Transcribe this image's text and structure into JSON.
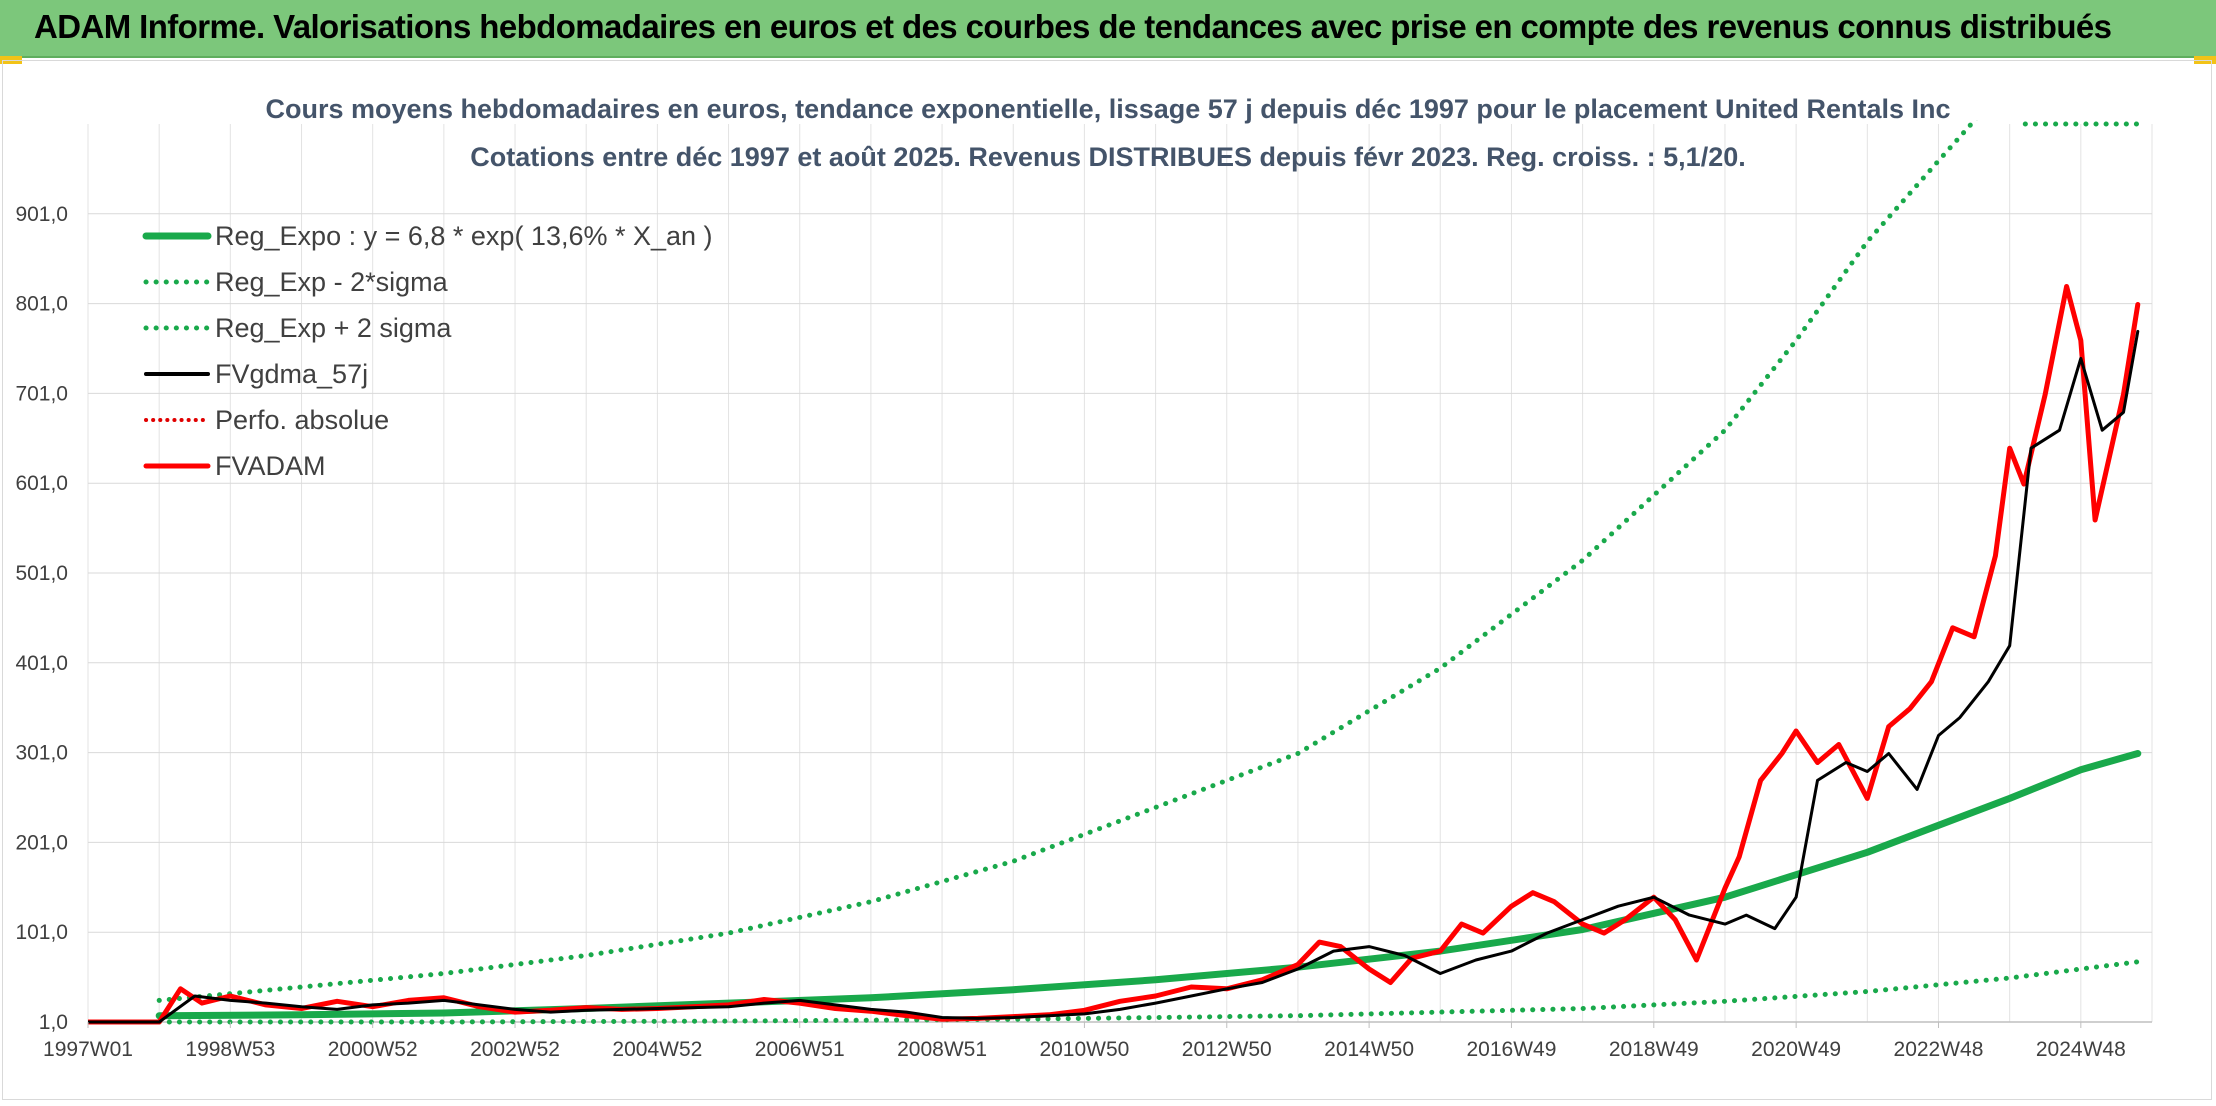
{
  "header": {
    "title": "ADAM Informe. Valorisations hebdomadaires en euros et des courbes de tendances avec prise en compte des revenus connus distribués"
  },
  "colors": {
    "header_bg": "#7cc77b",
    "trend_green": "#19a94b",
    "fv_black": "#000000",
    "fvadam_red": "#ff0000",
    "perfo_red": "#e00000",
    "title_text": "#44546a"
  },
  "chart_data": {
    "type": "line",
    "title": "Cours moyens hebdomadaires en euros, tendance exponentielle, lissage 57 j depuis déc 1997 pour le placement United Rentals Inc",
    "subtitle": "Cotations entre déc 1997 et août 2025. Revenus DISTRIBUES depuis févr 2023. Reg. croiss. : 5,1/20.",
    "xlabel": "",
    "ylabel": "",
    "x_tick_labels": [
      "1997W01",
      "1998W53",
      "2000W52",
      "2002W52",
      "2004W52",
      "2006W51",
      "2008W51",
      "2010W50",
      "2012W50",
      "2014W50",
      "2016W49",
      "2018W49",
      "2020W49",
      "2022W48",
      "2024W48"
    ],
    "x_tick_years": [
      1997.0,
      1999.0,
      2001.0,
      2003.0,
      2005.0,
      2007.0,
      2009.0,
      2011.0,
      2013.0,
      2015.0,
      2017.0,
      2019.0,
      2021.0,
      2023.0,
      2025.0
    ],
    "xlim": [
      1997.0,
      2026.0
    ],
    "y_tick_labels": [
      "1,0",
      "101,0",
      "201,0",
      "301,0",
      "401,0",
      "501,0",
      "601,0",
      "701,0",
      "801,0",
      "901,0"
    ],
    "y_ticks": [
      1,
      101,
      201,
      301,
      401,
      501,
      601,
      701,
      801,
      901
    ],
    "ylim": [
      1,
      1001
    ],
    "grid": true,
    "legend_position": "top-left",
    "legend": [
      {
        "label": "Reg_Expo : y = 6,8 * exp( 13,6% *  X_an )",
        "style": "solid-thick",
        "color": "#19a94b"
      },
      {
        "label": "Reg_Exp - 2*sigma",
        "style": "dotted",
        "color": "#19a94b"
      },
      {
        "label": "Reg_Exp + 2 sigma",
        "style": "dotted",
        "color": "#19a94b"
      },
      {
        "label": "FVgdma_57j",
        "style": "solid",
        "color": "#000000"
      },
      {
        "label": "Perfo. absolue",
        "style": "dotted",
        "color": "#e00000"
      },
      {
        "label": "FVADAM",
        "style": "solid-thick",
        "color": "#ff0000"
      }
    ],
    "series": [
      {
        "name": "Reg_Expo : y = 6,8 * exp( 13,6% *  X_an )",
        "x": [
          1998.0,
          2000.0,
          2002.0,
          2004.0,
          2006.0,
          2008.0,
          2010.0,
          2012.0,
          2014.0,
          2016.0,
          2018.0,
          2020.0,
          2021.0,
          2022.0,
          2023.0,
          2024.0,
          2025.0,
          2025.8
        ],
        "y": [
          8,
          9,
          11,
          16,
          22,
          28,
          37,
          48,
          62,
          80,
          104,
          140,
          165,
          190,
          220,
          250,
          282,
          300
        ]
      },
      {
        "name": "Reg_Exp - 2*sigma",
        "x": [
          1998.0,
          2002.0,
          2006.0,
          2010.0,
          2014.0,
          2018.0,
          2020.0,
          2022.0,
          2024.0,
          2025.8
        ],
        "y": [
          1,
          1,
          2,
          4,
          8,
          16,
          24,
          35,
          50,
          68
        ]
      },
      {
        "name": "Reg_Exp + 2 sigma",
        "x": [
          1998.0,
          2000.0,
          2002.0,
          2004.0,
          2006.0,
          2008.0,
          2010.0,
          2012.0,
          2014.0,
          2016.0,
          2018.0,
          2020.0,
          2021.0,
          2022.0,
          2023.0,
          2023.9,
          2024.2,
          2025.8
        ],
        "y": [
          25,
          40,
          55,
          75,
          100,
          135,
          180,
          240,
          300,
          395,
          515,
          660,
          760,
          870,
          960,
          1040,
          1001,
          1001
        ]
      },
      {
        "name": "FVgdma_57j",
        "x": [
          1997.0,
          1998.0,
          1998.5,
          1999.0,
          1999.5,
          2000.0,
          2000.5,
          2001.0,
          2001.5,
          2002.0,
          2002.5,
          2003.0,
          2003.5,
          2004.0,
          2004.5,
          2005.0,
          2005.5,
          2006.0,
          2006.5,
          2007.0,
          2007.5,
          2008.0,
          2008.5,
          2009.0,
          2009.5,
          2010.0,
          2010.5,
          2011.0,
          2011.5,
          2012.0,
          2012.5,
          2013.0,
          2013.5,
          2014.0,
          2014.5,
          2015.0,
          2015.5,
          2016.0,
          2016.5,
          2017.0,
          2017.5,
          2018.0,
          2018.5,
          2019.0,
          2019.5,
          2020.0,
          2020.3,
          2020.7,
          2021.0,
          2021.3,
          2021.7,
          2022.0,
          2022.3,
          2022.7,
          2023.0,
          2023.3,
          2023.7,
          2024.0,
          2024.3,
          2024.7,
          2025.0,
          2025.3,
          2025.6,
          2025.8
        ],
        "y": [
          1,
          1,
          30,
          25,
          22,
          18,
          15,
          20,
          22,
          25,
          20,
          15,
          12,
          14,
          15,
          16,
          17,
          18,
          22,
          25,
          20,
          15,
          12,
          6,
          5,
          6,
          8,
          10,
          15,
          22,
          30,
          38,
          45,
          60,
          80,
          85,
          75,
          55,
          70,
          80,
          100,
          115,
          130,
          140,
          120,
          110,
          120,
          105,
          140,
          270,
          290,
          280,
          300,
          260,
          320,
          340,
          380,
          420,
          640,
          660,
          740,
          660,
          680,
          770
        ]
      },
      {
        "name": "Perfo. absolue",
        "x": [
          1997.0,
          1998.0
        ],
        "y": [
          1,
          1
        ]
      },
      {
        "name": "FVADAM",
        "x": [
          1997.0,
          1998.0,
          1998.3,
          1998.6,
          1999.0,
          1999.5,
          2000.0,
          2000.5,
          2001.0,
          2001.5,
          2002.0,
          2002.5,
          2003.0,
          2003.5,
          2004.0,
          2004.5,
          2005.0,
          2005.5,
          2006.0,
          2006.5,
          2007.0,
          2007.5,
          2008.0,
          2008.5,
          2009.0,
          2009.5,
          2010.0,
          2010.5,
          2011.0,
          2011.5,
          2012.0,
          2012.5,
          2013.0,
          2013.5,
          2014.0,
          2014.3,
          2014.6,
          2015.0,
          2015.3,
          2015.6,
          2016.0,
          2016.3,
          2016.6,
          2017.0,
          2017.3,
          2017.6,
          2018.0,
          2018.3,
          2018.6,
          2019.0,
          2019.3,
          2019.6,
          2020.0,
          2020.2,
          2020.5,
          2020.8,
          2021.0,
          2021.3,
          2021.6,
          2022.0,
          2022.3,
          2022.6,
          2022.9,
          2023.2,
          2023.5,
          2023.8,
          2024.0,
          2024.2,
          2024.5,
          2024.8,
          2025.0,
          2025.2,
          2025.4,
          2025.6,
          2025.8
        ],
        "y": [
          1,
          1,
          38,
          22,
          30,
          20,
          16,
          24,
          18,
          25,
          28,
          18,
          12,
          14,
          17,
          15,
          16,
          18,
          20,
          26,
          22,
          16,
          13,
          8,
          4,
          5,
          7,
          9,
          14,
          24,
          30,
          40,
          38,
          48,
          65,
          90,
          85,
          60,
          45,
          72,
          80,
          110,
          100,
          130,
          145,
          135,
          110,
          100,
          115,
          140,
          115,
          70,
          150,
          185,
          270,
          300,
          325,
          290,
          310,
          250,
          330,
          350,
          380,
          440,
          430,
          520,
          640,
          600,
          700,
          820,
          760,
          560,
          630,
          700,
          800
        ]
      }
    ]
  }
}
